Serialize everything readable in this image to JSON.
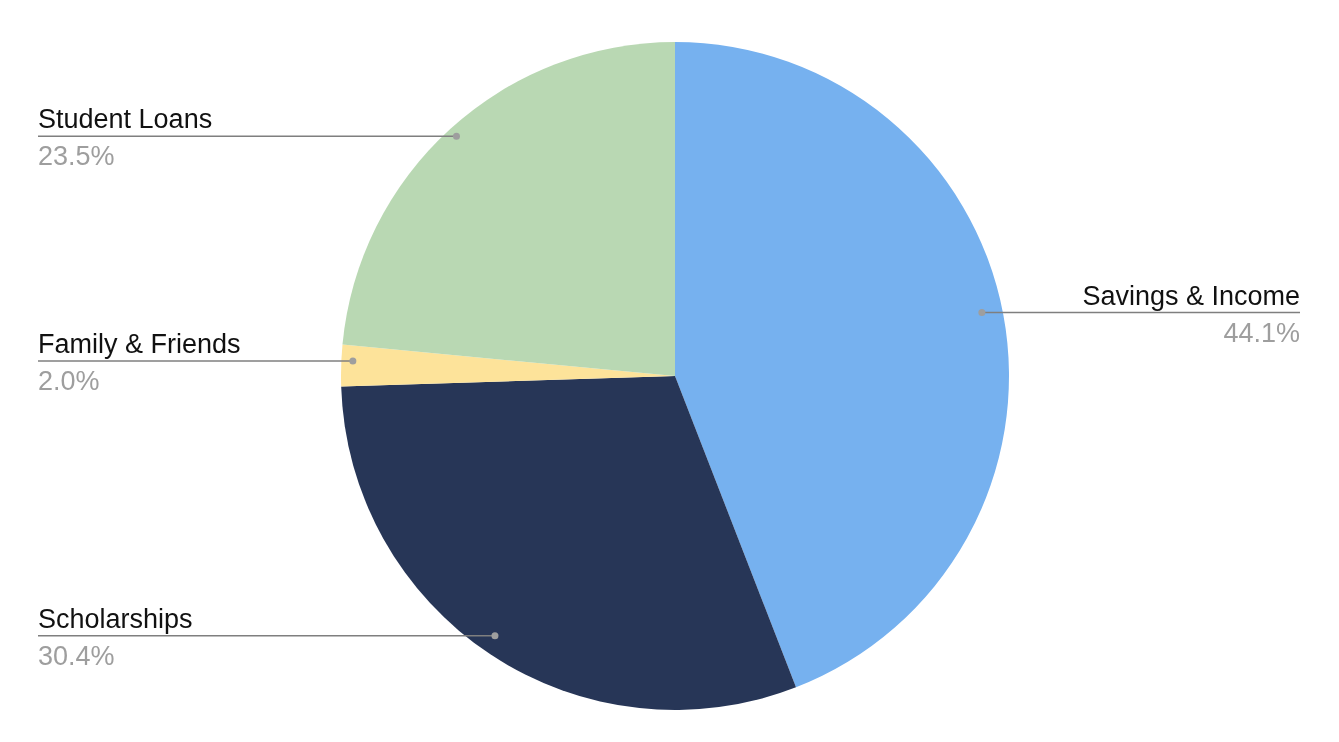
{
  "chart_data": {
    "type": "pie",
    "categories": [
      "Savings & Income",
      "Scholarships",
      "Family & Friends",
      "Student Loans"
    ],
    "values": [
      44.1,
      30.4,
      2.0,
      23.5
    ],
    "value_labels": [
      "44.1%",
      "30.4%",
      "2.0%",
      "23.5%"
    ],
    "colors": [
      "#76b1ef",
      "#273657",
      "#fde39a",
      "#b9d8b3"
    ]
  }
}
